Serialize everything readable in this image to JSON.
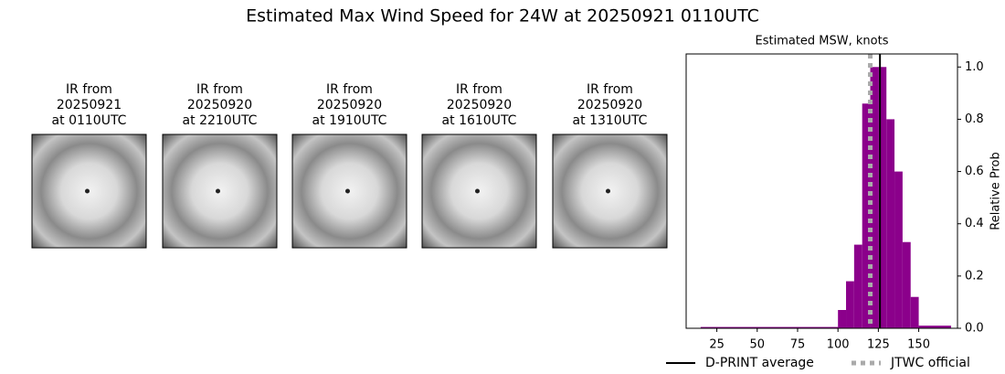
{
  "title": "Estimated Max Wind Speed for 24W at 20250921 0110UTC",
  "panels": [
    {
      "label": [
        "IR from",
        "20250921",
        "at 0110UTC"
      ]
    },
    {
      "label": [
        "IR from",
        "20250920",
        "at 2210UTC"
      ]
    },
    {
      "label": [
        "IR from",
        "20250920",
        "at 1910UTC"
      ]
    },
    {
      "label": [
        "IR from",
        "20250920",
        "at 1610UTC"
      ]
    },
    {
      "label": [
        "IR from",
        "20250920",
        "at 1310UTC"
      ]
    }
  ],
  "chart_data": {
    "type": "histogram",
    "title": "Estimated MSW, knots",
    "y_label": "Relative Prob",
    "bins": [
      15,
      100,
      105,
      110,
      115,
      120,
      125,
      130,
      135,
      140,
      145,
      150,
      170
    ],
    "values": [
      0.005,
      0.07,
      0.18,
      0.32,
      0.86,
      1.0,
      1.0,
      0.8,
      0.6,
      0.33,
      0.12,
      0.01
    ],
    "color": "#8b008b",
    "xlim": [
      6,
      174
    ],
    "xticks": [
      25,
      50,
      75,
      100,
      125,
      150
    ],
    "ylim": [
      0,
      1.05
    ],
    "yticks": [
      {
        "value": 0,
        "label": "0.0"
      },
      {
        "value": 0.2,
        "label": "0.2"
      },
      {
        "value": 0.4,
        "label": "0.4"
      },
      {
        "value": 0.6,
        "label": "0.6"
      },
      {
        "value": 0.8,
        "label": "0.8"
      },
      {
        "value": 1,
        "label": "1.0"
      }
    ],
    "lines": [
      {
        "name": "D-PRINT average",
        "value": 126,
        "color": "#000000",
        "dashed": false
      },
      {
        "name": "JTWC official",
        "value": 120,
        "color": "#aaaaaa",
        "dashed": true
      }
    ]
  }
}
